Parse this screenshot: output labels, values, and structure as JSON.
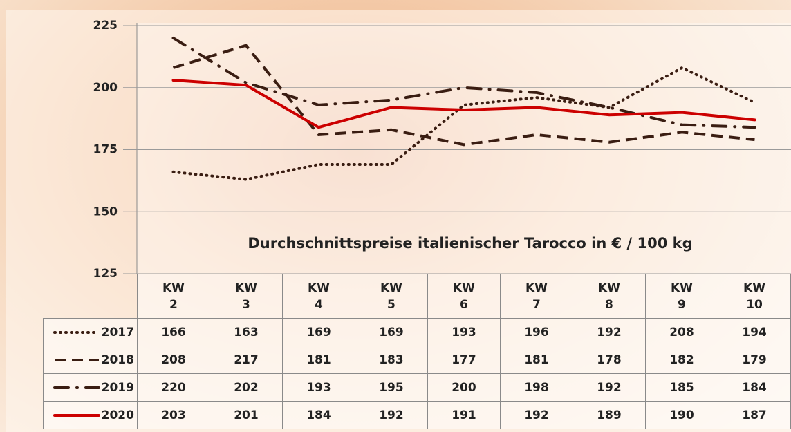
{
  "chart_data": {
    "type": "line",
    "title": "Durchschnittspreise italienischer Tarocco in € / 100 kg",
    "categories": [
      "KW 2",
      "KW 3",
      "KW 4",
      "KW 5",
      "KW 6",
      "KW 7",
      "KW 8",
      "KW 9",
      "KW 10"
    ],
    "series": [
      {
        "name": "2017",
        "color": "#3a1d12",
        "style": "dotted",
        "values": [
          166,
          163,
          169,
          169,
          193,
          196,
          192,
          208,
          194
        ]
      },
      {
        "name": "2018",
        "color": "#3a1d12",
        "style": "dashed",
        "values": [
          208,
          217,
          181,
          183,
          177,
          181,
          178,
          182,
          179
        ]
      },
      {
        "name": "2019",
        "color": "#3a1d12",
        "style": "dashdot",
        "values": [
          220,
          202,
          193,
          195,
          200,
          198,
          192,
          185,
          184
        ]
      },
      {
        "name": "2020",
        "color": "#cc0000",
        "style": "solid",
        "values": [
          203,
          201,
          184,
          192,
          191,
          192,
          189,
          190,
          187
        ]
      }
    ],
    "ylim": [
      125,
      225
    ],
    "yticks": [
      125,
      150,
      175,
      200,
      225
    ],
    "grid": true
  }
}
